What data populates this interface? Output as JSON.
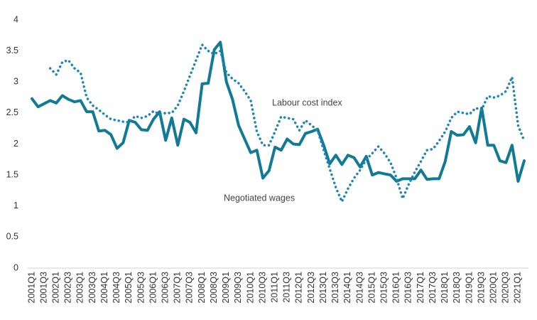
{
  "chart_data": {
    "type": "line",
    "categories": [
      "2001Q1",
      null,
      "2001Q3",
      null,
      "2002Q1",
      null,
      "2002Q3",
      null,
      "2003Q1",
      null,
      "2003Q3",
      null,
      "2004Q1",
      null,
      "2004Q3",
      null,
      "2005Q1",
      null,
      "2005Q3",
      null,
      "2006Q1",
      null,
      "2006Q3",
      null,
      "2007Q1",
      null,
      "2007Q3",
      null,
      "2008Q1",
      null,
      "2008Q3",
      null,
      "2009Q1",
      null,
      "2009Q3",
      null,
      "2010Q1",
      null,
      "2010Q3",
      null,
      "2011Q1",
      null,
      "2011Q3",
      null,
      "2012Q1",
      null,
      "2012Q3",
      null,
      "2013Q1",
      null,
      "2013Q3",
      null,
      "2014Q1",
      null,
      "2014Q3",
      null,
      "2015Q1",
      null,
      "2015Q3",
      null,
      "2016Q1",
      null,
      "2016Q3",
      null,
      "2017Q1",
      null,
      "2017Q3",
      null,
      "2018Q1",
      null,
      "2018Q3",
      null,
      "2019Q1",
      null,
      "2019Q3",
      null,
      "2020Q1",
      null,
      "2020Q3",
      null,
      "2021Q1",
      null
    ],
    "series": [
      {
        "name": "Negotiated wages",
        "color": "#117a94",
        "dash": false,
        "values": [
          2.73,
          2.6,
          2.65,
          2.7,
          2.66,
          2.78,
          2.72,
          2.68,
          2.7,
          2.52,
          2.52,
          2.21,
          2.22,
          2.15,
          1.93,
          2.02,
          2.38,
          2.35,
          2.23,
          2.22,
          2.4,
          2.52,
          2.06,
          2.42,
          1.98,
          2.4,
          2.35,
          2.18,
          2.97,
          2.98,
          3.52,
          3.64,
          3.0,
          2.72,
          2.3,
          2.08,
          1.86,
          1.9,
          1.45,
          1.57,
          1.95,
          1.9,
          2.08,
          2.0,
          1.99,
          2.17,
          2.2,
          2.24,
          1.98,
          1.68,
          1.82,
          1.67,
          1.82,
          1.78,
          1.63,
          1.8,
          1.5,
          1.54,
          1.52,
          1.5,
          1.4,
          1.44,
          1.44,
          1.44,
          1.58,
          1.43,
          1.44,
          1.44,
          1.72,
          2.2,
          2.14,
          2.15,
          2.28,
          2.02,
          2.58,
          1.98,
          1.98,
          1.73,
          1.7,
          1.98,
          1.4,
          1.73
        ]
      },
      {
        "name": "Labour cost index",
        "color": "#1a86b8",
        "dash": true,
        "values": [
          null,
          null,
          null,
          3.22,
          3.12,
          3.32,
          3.35,
          3.22,
          3.15,
          2.75,
          2.62,
          2.55,
          2.47,
          2.4,
          2.38,
          2.36,
          2.35,
          2.45,
          2.42,
          2.45,
          2.53,
          2.48,
          2.5,
          2.5,
          2.62,
          2.85,
          3.1,
          3.35,
          3.6,
          3.5,
          3.45,
          3.5,
          3.15,
          3.05,
          2.98,
          2.85,
          2.7,
          2.2,
          1.98,
          1.98,
          2.2,
          2.44,
          2.42,
          2.4,
          2.22,
          2.38,
          2.3,
          2.22,
          1.9,
          1.6,
          1.3,
          1.07,
          1.28,
          1.45,
          1.58,
          1.75,
          1.85,
          1.96,
          1.85,
          1.7,
          1.45,
          1.12,
          1.35,
          1.55,
          1.72,
          1.9,
          1.92,
          2.05,
          2.2,
          2.42,
          2.52,
          2.5,
          2.48,
          2.58,
          2.55,
          2.77,
          2.75,
          2.78,
          2.85,
          3.08,
          2.3,
          2.05
        ]
      }
    ],
    "ylim": [
      0,
      4
    ],
    "yticks": [
      0,
      0.5,
      1,
      1.5,
      2,
      2.5,
      3,
      3.5,
      4
    ],
    "grid": false
  }
}
